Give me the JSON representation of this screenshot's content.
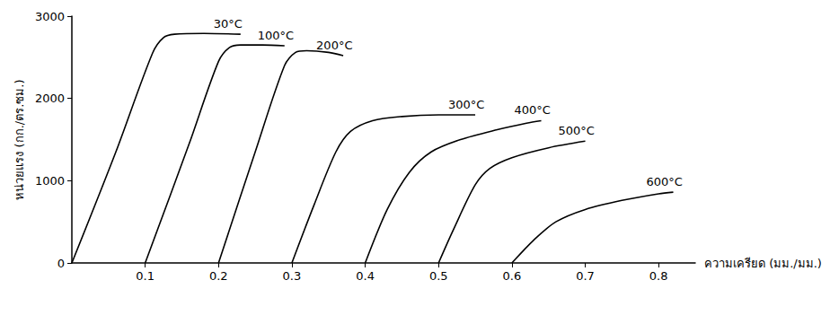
{
  "chart_data": {
    "type": "line",
    "x_label": "ความเครียด (มม./มม.)",
    "y_label": "หน่วยแรง (กก./ตร.ซม.)",
    "xlim": [
      0,
      0.85
    ],
    "xticks": [
      0.1,
      0.2,
      0.3,
      0.4,
      0.5,
      0.6,
      0.7,
      0.8
    ],
    "ylim": [
      0,
      3000
    ],
    "yticks": [
      0,
      1000,
      2000,
      3000
    ],
    "grid": false,
    "color": "#000000",
    "line_style": "solid",
    "series": [
      {
        "name": "30°C",
        "x": [
          0,
          0.06,
          0.11,
          0.125,
          0.14,
          0.18,
          0.23
        ],
        "values": [
          0,
          1350,
          2550,
          2740,
          2780,
          2790,
          2780
        ]
      },
      {
        "name": "100°C",
        "x": [
          0.1,
          0.16,
          0.2,
          0.215,
          0.23,
          0.26,
          0.29
        ],
        "values": [
          0,
          1450,
          2450,
          2620,
          2650,
          2650,
          2640
        ]
      },
      {
        "name": "200°C",
        "x": [
          0.2,
          0.25,
          0.29,
          0.305,
          0.32,
          0.35,
          0.37
        ],
        "values": [
          0,
          1350,
          2400,
          2560,
          2580,
          2560,
          2520
        ]
      },
      {
        "name": "300°C",
        "x": [
          0.3,
          0.33,
          0.36,
          0.38,
          0.41,
          0.45,
          0.5,
          0.55
        ],
        "values": [
          0,
          700,
          1350,
          1600,
          1730,
          1780,
          1800,
          1800
        ]
      },
      {
        "name": "400°C",
        "x": [
          0.4,
          0.43,
          0.46,
          0.49,
          0.53,
          0.58,
          0.62,
          0.64
        ],
        "values": [
          0,
          650,
          1100,
          1350,
          1500,
          1620,
          1700,
          1730
        ]
      },
      {
        "name": "500°C",
        "x": [
          0.5,
          0.52,
          0.55,
          0.57,
          0.6,
          0.65,
          0.7
        ],
        "values": [
          0,
          400,
          950,
          1150,
          1280,
          1400,
          1480
        ]
      },
      {
        "name": "600°C",
        "x": [
          0.6,
          0.63,
          0.66,
          0.7,
          0.75,
          0.8,
          0.82
        ],
        "values": [
          0,
          280,
          500,
          650,
          760,
          840,
          860
        ]
      }
    ]
  }
}
